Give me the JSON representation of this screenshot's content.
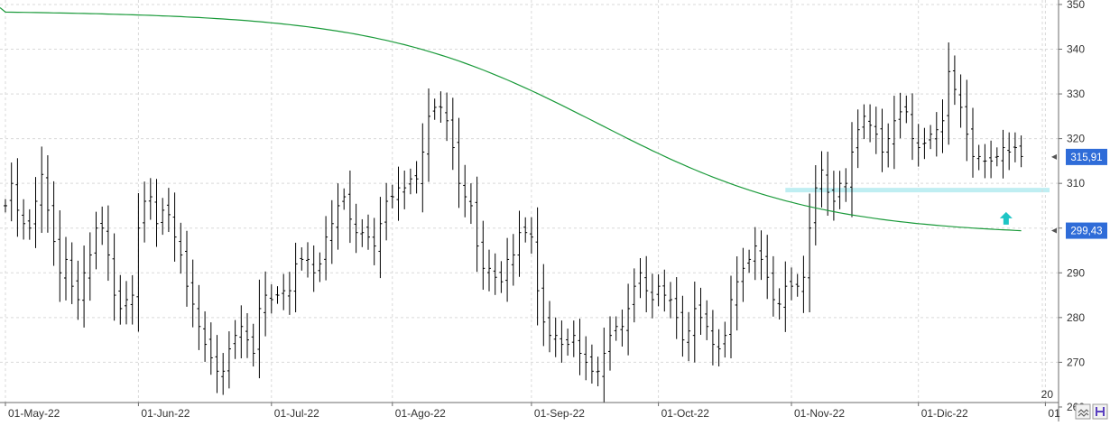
{
  "chart_data": {
    "type": "ohlc",
    "title": "",
    "xlabel": "",
    "ylabel": "",
    "ylim": [
      261,
      351
    ],
    "y_ticks": [
      260,
      270,
      280,
      290,
      300,
      310,
      320,
      330,
      340,
      350
    ],
    "y_tick_labels": [
      "260",
      "270",
      "280",
      "290",
      "300",
      "310",
      "320",
      "330",
      "340",
      "350"
    ],
    "x_ticks": [
      {
        "label": "01-May-22",
        "index": 0
      },
      {
        "label": "01-Jun-22",
        "index": 22
      },
      {
        "label": "01-Jul-22",
        "index": 44
      },
      {
        "label": "01-Ago-22",
        "index": 64
      },
      {
        "label": "01-Sep-22",
        "index": 87
      },
      {
        "label": "01-Oct-22",
        "index": 108
      },
      {
        "label": "01-Nov-22",
        "index": 130
      },
      {
        "label": "01-Dic-22",
        "index": 151
      },
      {
        "label": "01",
        "index": 172
      }
    ],
    "corner_label": "20",
    "last_price": {
      "label": "315,91",
      "value": 315.91,
      "color": "#2f6cd8"
    },
    "ma_last": {
      "label": "299,43",
      "value": 299.43,
      "color": "#2f6cd8"
    },
    "support_level": {
      "value": 308.5,
      "color": "#bfeef2"
    },
    "arrow_marker": {
      "x_index": 165.5,
      "y_value": 302,
      "color": "#1ec5c5",
      "direction": "up"
    },
    "bar_color": "#000000",
    "ma_color": "#1a9a3a",
    "closes": [
      305,
      310,
      304,
      301,
      300,
      306,
      312,
      304,
      297,
      290,
      293,
      287,
      284,
      290,
      294,
      300,
      300,
      294,
      285,
      282,
      284,
      285,
      300,
      306,
      307,
      301,
      304,
      303,
      298,
      294,
      287,
      283,
      278,
      274,
      271,
      268,
      268,
      273,
      276,
      278,
      275,
      272,
      282,
      285,
      284,
      285,
      286,
      286,
      292,
      293,
      293,
      290,
      292,
      298,
      301,
      305,
      307,
      302,
      299,
      299,
      298,
      296,
      301,
      306,
      307,
      309,
      309,
      311,
      311,
      317,
      325,
      327,
      327,
      324,
      318,
      310,
      307,
      305,
      296,
      291,
      291,
      289,
      288,
      293,
      294,
      299,
      299,
      298,
      286,
      279,
      276,
      276,
      274,
      274,
      276,
      272,
      270,
      268,
      268,
      272,
      276,
      278,
      278,
      282,
      287,
      290,
      286,
      284,
      287,
      285,
      284,
      280,
      275,
      277,
      282,
      280,
      278,
      274,
      273,
      276,
      284,
      288,
      291,
      293,
      296,
      293,
      289,
      284,
      283,
      287,
      287,
      287,
      289,
      300,
      309,
      313,
      308,
      306,
      310,
      310,
      317,
      322,
      325,
      323,
      321,
      317,
      320,
      324,
      326,
      326,
      320,
      318,
      319,
      321,
      322,
      324,
      335,
      331,
      327,
      321,
      316,
      316,
      315,
      315,
      316,
      318,
      317,
      318,
      316
    ]
  }
}
